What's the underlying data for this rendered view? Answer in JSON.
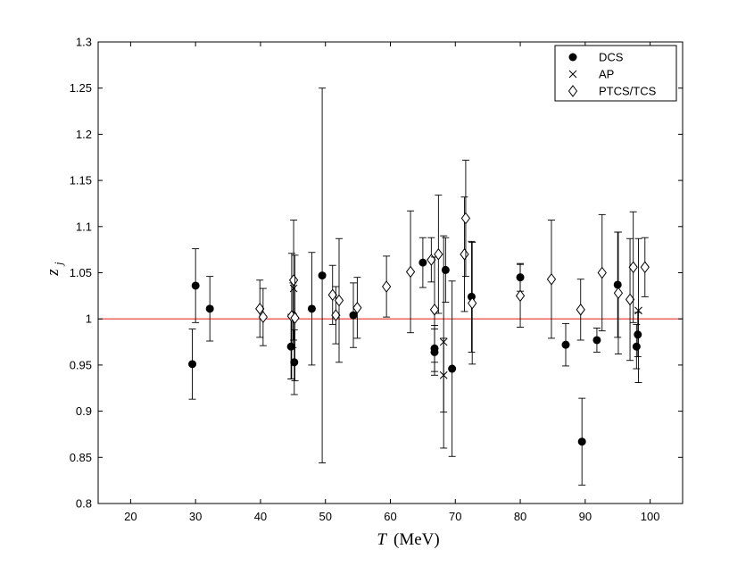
{
  "chart_data": {
    "type": "scatter",
    "xlabel_symbol": "T",
    "xlabel_unit": "(MeV)",
    "ylabel_symbol": "z",
    "ylabel_subscript": "j",
    "xlim": [
      15,
      105
    ],
    "ylim": [
      0.8,
      1.3
    ],
    "xticks": [
      20,
      30,
      40,
      50,
      60,
      70,
      80,
      90,
      100
    ],
    "yticks": [
      0.8,
      0.85,
      0.9,
      0.95,
      1,
      1.05,
      1.1,
      1.15,
      1.2,
      1.25,
      1.3
    ],
    "xtick_labels": [
      "20",
      "30",
      "40",
      "50",
      "60",
      "70",
      "80",
      "90",
      "100"
    ],
    "ytick_labels": [
      "0.8",
      "0.85",
      "0.9",
      "0.95",
      "1",
      "1.05",
      "1.1",
      "1.15",
      "1.2",
      "1.25",
      "1.3"
    ],
    "reference_line": {
      "y": 1.0,
      "color": "#e8322b"
    },
    "legend": {
      "position": "top-right",
      "entries": [
        "DCS",
        "AP",
        "PTCS/TCS"
      ]
    },
    "series": [
      {
        "name": "DCS",
        "marker": "filled-circle",
        "points": [
          {
            "x": 29.5,
            "y": 0.951,
            "err": 0.038
          },
          {
            "x": 30.0,
            "y": 1.036,
            "err": 0.04
          },
          {
            "x": 32.2,
            "y": 1.011,
            "err": 0.035
          },
          {
            "x": 44.7,
            "y": 0.97,
            "err": 0.035
          },
          {
            "x": 45.0,
            "y": 1.004,
            "err": 0.035
          },
          {
            "x": 45.2,
            "y": 0.953,
            "err": 0.035
          },
          {
            "x": 47.9,
            "y": 1.011,
            "err": 0.061
          },
          {
            "x": 49.5,
            "y": 1.047,
            "err": 0.203
          },
          {
            "x": 54.3,
            "y": 1.004,
            "err": 0.035
          },
          {
            "x": 65.0,
            "y": 1.061,
            "err": 0.027
          },
          {
            "x": 66.8,
            "y": 0.968,
            "err": 0.025
          },
          {
            "x": 66.8,
            "y": 0.964,
            "err": 0.025
          },
          {
            "x": 68.5,
            "y": 1.053,
            "err": 0.035
          },
          {
            "x": 69.5,
            "y": 0.946,
            "err": 0.095
          },
          {
            "x": 72.5,
            "y": 1.024,
            "err": 0.06
          },
          {
            "x": 80.0,
            "y": 1.045,
            "err": 0.015
          },
          {
            "x": 87.0,
            "y": 0.972,
            "err": 0.023
          },
          {
            "x": 89.5,
            "y": 0.867,
            "err": 0.047
          },
          {
            "x": 91.8,
            "y": 0.977,
            "err": 0.013
          },
          {
            "x": 95.0,
            "y": 1.037,
            "err": 0.057
          },
          {
            "x": 97.9,
            "y": 0.97,
            "err": 0.024
          },
          {
            "x": 98.1,
            "y": 0.983,
            "err": 0.024
          }
        ]
      },
      {
        "name": "AP",
        "marker": "cross",
        "points": [
          {
            "x": 45.1,
            "y": 1.033,
            "err": 0.0
          },
          {
            "x": 68.2,
            "y": 0.975,
            "err": 0.115
          },
          {
            "x": 68.2,
            "y": 0.939,
            "err": 0.04
          },
          {
            "x": 98.2,
            "y": 1.009,
            "err": 0.078
          }
        ]
      },
      {
        "name": "PTCS/TCS",
        "marker": "open-diamond",
        "points": [
          {
            "x": 39.9,
            "y": 1.011,
            "err": 0.031
          },
          {
            "x": 40.4,
            "y": 1.002,
            "err": 0.031
          },
          {
            "x": 44.8,
            "y": 1.003,
            "err": 0.068
          },
          {
            "x": 45.1,
            "y": 1.042,
            "err": 0.065
          },
          {
            "x": 45.3,
            "y": 1.001,
            "err": 0.068
          },
          {
            "x": 51.1,
            "y": 1.026,
            "err": 0.032
          },
          {
            "x": 51.6,
            "y": 1.004,
            "err": 0.031
          },
          {
            "x": 52.1,
            "y": 1.02,
            "err": 0.067
          },
          {
            "x": 54.9,
            "y": 1.012,
            "err": 0.033
          },
          {
            "x": 59.4,
            "y": 1.035,
            "err": 0.033
          },
          {
            "x": 63.1,
            "y": 1.051,
            "err": 0.066
          },
          {
            "x": 66.3,
            "y": 1.064,
            "err": 0.024
          },
          {
            "x": 66.8,
            "y": 1.01,
            "err": 0.057
          },
          {
            "x": 67.4,
            "y": 1.07,
            "err": 0.064
          },
          {
            "x": 71.4,
            "y": 1.07,
            "err": 0.062
          },
          {
            "x": 71.6,
            "y": 1.109,
            "err": 0.063
          },
          {
            "x": 72.6,
            "y": 1.017,
            "err": 0.066
          },
          {
            "x": 80.0,
            "y": 1.025,
            "err": 0.034
          },
          {
            "x": 84.8,
            "y": 1.043,
            "err": 0.064
          },
          {
            "x": 89.3,
            "y": 1.01,
            "err": 0.033
          },
          {
            "x": 92.6,
            "y": 1.05,
            "err": 0.063
          },
          {
            "x": 95.1,
            "y": 1.028,
            "err": 0.066
          },
          {
            "x": 96.9,
            "y": 1.021,
            "err": 0.066
          },
          {
            "x": 97.4,
            "y": 1.056,
            "err": 0.06
          },
          {
            "x": 99.2,
            "y": 1.056,
            "err": 0.032
          }
        ]
      }
    ]
  }
}
